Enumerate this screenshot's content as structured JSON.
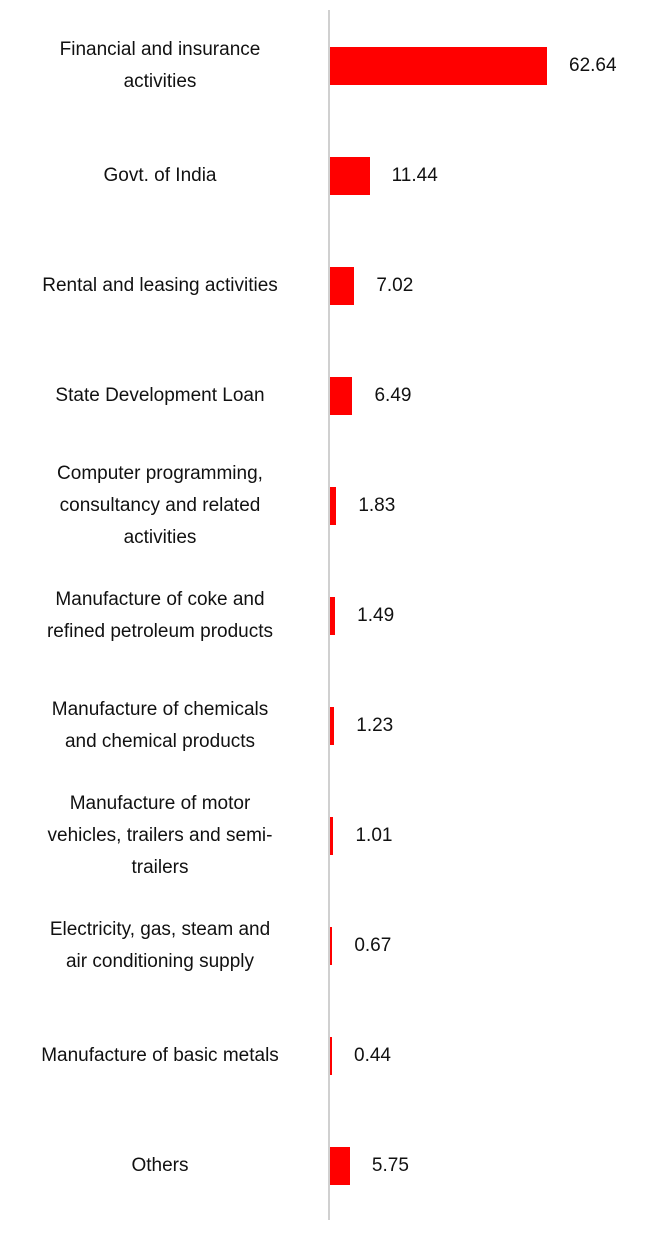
{
  "chart_data": {
    "type": "bar",
    "orientation": "horizontal",
    "categories": [
      "Financial and insurance activities",
      "Govt. of India",
      "Rental and leasing activities",
      "State Development Loan",
      "Computer programming, consultancy and related activities",
      "Manufacture of coke and refined petroleum products",
      "Manufacture of chemicals and chemical products",
      "Manufacture of motor vehicles, trailers and semi-trailers",
      "Electricity, gas, steam and air conditioning supply",
      "Manufacture of basic metals",
      "Others"
    ],
    "category_lines": [
      [
        "Financial and insurance",
        "activities"
      ],
      [
        "Govt. of India"
      ],
      [
        "Rental and leasing activities"
      ],
      [
        "State Development Loan"
      ],
      [
        "Computer programming,",
        "consultancy and related",
        "activities"
      ],
      [
        "Manufacture of coke and",
        "refined petroleum products"
      ],
      [
        "Manufacture of chemicals",
        "and chemical products"
      ],
      [
        "Manufacture of motor",
        "vehicles, trailers and semi-",
        "trailers"
      ],
      [
        "Electricity, gas, steam and",
        "air conditioning supply"
      ],
      [
        "Manufacture of basic metals"
      ],
      [
        "Others"
      ]
    ],
    "values": [
      62.64,
      11.44,
      7.02,
      6.49,
      1.83,
      1.49,
      1.23,
      1.01,
      0.67,
      0.44,
      5.75
    ],
    "value_labels": [
      "62.64",
      "11.44",
      "7.02",
      "6.49",
      "1.83",
      "1.49",
      "1.23",
      "1.01",
      "0.67",
      "0.44",
      "5.75"
    ],
    "xlim": [
      0,
      62.64
    ],
    "bar_color": "#ff0000",
    "axis_color": "#d0d0d0",
    "grid": false,
    "legend": "none"
  }
}
